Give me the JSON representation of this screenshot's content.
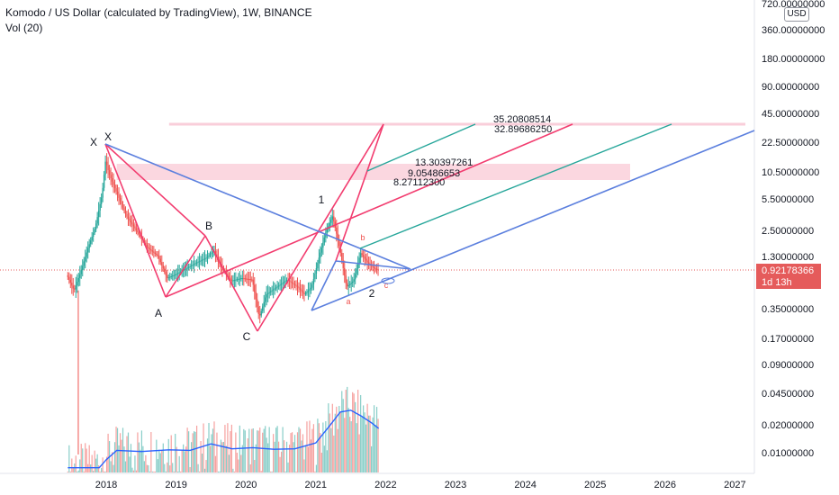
{
  "legend": {
    "title": "Komodo / US Dollar (calculated by TradingView), 1W, BINANCE",
    "indicator": "Vol (20)"
  },
  "currency_button": "USD",
  "current_price": {
    "value": "0.92178366",
    "countdown": "1d 13h"
  },
  "colors": {
    "up": "#26a69a",
    "down": "#ef5350",
    "pattern_pink": "#f23c6f",
    "pattern_blue": "#5b7fde",
    "channel_teal": "#26a69a",
    "zone_fill": "#f9c9d6",
    "volume_ma": "#2962ff",
    "price_line": "#e55b5b"
  },
  "chart_data": {
    "type": "candlestick",
    "y_scale": "log",
    "y_ticks": [
      "720.00000000",
      "360.00000000",
      "180.00000000",
      "90.00000000",
      "45.00000000",
      "22.50000000",
      "10.50000000",
      "5.50000000",
      "2.50000000",
      "1.30000000",
      "0.35000000",
      "0.17000000",
      "0.09000000",
      "0.04500000",
      "0.02000000",
      "0.01000000"
    ],
    "x_ticks": [
      "2018",
      "2019",
      "2020",
      "2021",
      "2022",
      "2023",
      "2024",
      "2025",
      "2026",
      "2027"
    ],
    "price_path": [
      [
        2017.45,
        0.8
      ],
      [
        2017.55,
        0.55
      ],
      [
        2017.65,
        0.9
      ],
      [
        2017.75,
        1.6
      ],
      [
        2017.85,
        2.6
      ],
      [
        2017.95,
        6.0
      ],
      [
        2018.0,
        14.0
      ],
      [
        2018.05,
        10.0
      ],
      [
        2018.15,
        6.5
      ],
      [
        2018.3,
        3.5
      ],
      [
        2018.45,
        2.4
      ],
      [
        2018.6,
        1.6
      ],
      [
        2018.75,
        1.3
      ],
      [
        2018.88,
        0.75
      ],
      [
        2019.0,
        0.82
      ],
      [
        2019.15,
        0.95
      ],
      [
        2019.3,
        1.1
      ],
      [
        2019.45,
        1.25
      ],
      [
        2019.55,
        1.5
      ],
      [
        2019.65,
        1.0
      ],
      [
        2019.8,
        0.7
      ],
      [
        2019.95,
        0.75
      ],
      [
        2020.1,
        0.72
      ],
      [
        2020.2,
        0.28
      ],
      [
        2020.3,
        0.5
      ],
      [
        2020.45,
        0.6
      ],
      [
        2020.6,
        0.72
      ],
      [
        2020.75,
        0.6
      ],
      [
        2020.85,
        0.5
      ],
      [
        2020.95,
        0.6
      ],
      [
        2021.05,
        1.2
      ],
      [
        2021.15,
        2.3
      ],
      [
        2021.25,
        3.5
      ],
      [
        2021.35,
        1.6
      ],
      [
        2021.45,
        0.6
      ],
      [
        2021.55,
        0.7
      ],
      [
        2021.65,
        1.4
      ],
      [
        2021.75,
        1.1
      ],
      [
        2021.85,
        0.95
      ],
      [
        2021.9,
        0.92
      ]
    ],
    "volume_ma_path": [
      [
        2017.45,
        0.004
      ],
      [
        2017.9,
        0.004
      ],
      [
        2018.0,
        0.005
      ],
      [
        2018.15,
        0.0065
      ],
      [
        2018.5,
        0.0063
      ],
      [
        2018.9,
        0.0066
      ],
      [
        2019.2,
        0.0065
      ],
      [
        2019.5,
        0.0078
      ],
      [
        2019.8,
        0.0068
      ],
      [
        2020.1,
        0.007
      ],
      [
        2020.4,
        0.0067
      ],
      [
        2020.7,
        0.0068
      ],
      [
        2021.0,
        0.008
      ],
      [
        2021.2,
        0.013
      ],
      [
        2021.35,
        0.019
      ],
      [
        2021.5,
        0.02
      ],
      [
        2021.65,
        0.017
      ],
      [
        2021.8,
        0.014
      ],
      [
        2021.9,
        0.012
      ]
    ],
    "volume_max": 0.105,
    "annotations": {
      "pattern_points": [
        {
          "label": "X",
          "x": 2018.0,
          "y": 22.5
        },
        {
          "label": "A",
          "x": 2018.88,
          "y": 0.62
        },
        {
          "label": "B",
          "x": 2019.45,
          "y": 1.75
        },
        {
          "label": "C",
          "x": 2020.2,
          "y": 0.28
        },
        {
          "label": "1",
          "x": 2021.1,
          "y": 4.2
        },
        {
          "label": "2",
          "x": 2021.8,
          "y": 0.5
        },
        {
          "label": "a",
          "x": 2021.5,
          "y": 0.45
        },
        {
          "label": "b",
          "x": 2021.72,
          "y": 2.2
        },
        {
          "label": "c",
          "x": 2021.98,
          "y": 0.62
        }
      ],
      "levels": [
        "35.20808514",
        "32.89686250",
        "13.30397261",
        "9.05486653",
        "8.27112300"
      ]
    }
  }
}
